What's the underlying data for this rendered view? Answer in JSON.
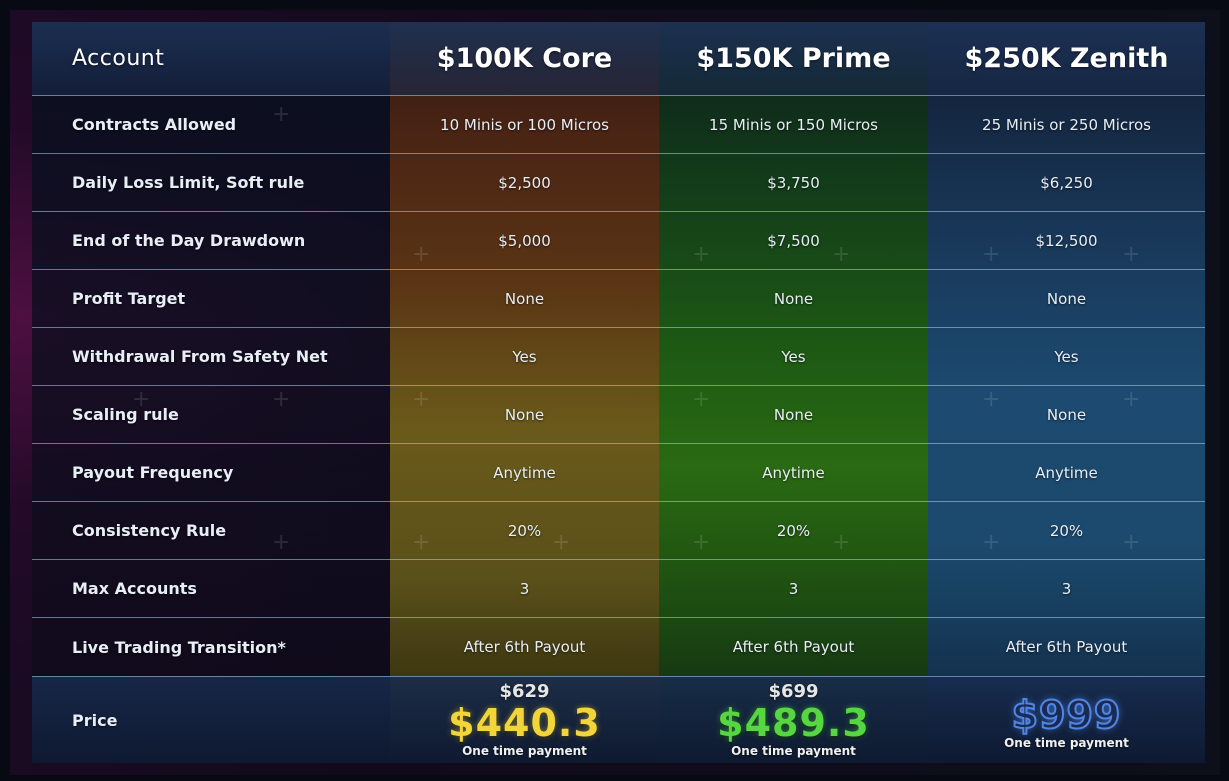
{
  "header": {
    "account_label": "Account",
    "plans": [
      "$100K Core",
      "$150K Prime",
      "$250K Zenith"
    ]
  },
  "rows": [
    {
      "label": "Contracts Allowed",
      "values": [
        "10 Minis or 100 Micros",
        "15 Minis or 150 Micros",
        "25 Minis or 250 Micros"
      ]
    },
    {
      "label": "Daily Loss Limit, Soft rule",
      "values": [
        "$2,500",
        "$3,750",
        "$6,250"
      ]
    },
    {
      "label": "End of the Day Drawdown",
      "values": [
        "$5,000",
        "$7,500",
        "$12,500"
      ]
    },
    {
      "label": "Profit Target",
      "values": [
        "None",
        "None",
        "None"
      ]
    },
    {
      "label": "Withdrawal From Safety Net",
      "values": [
        "Yes",
        "Yes",
        "Yes"
      ]
    },
    {
      "label": "Scaling rule",
      "values": [
        "None",
        "None",
        "None"
      ]
    },
    {
      "label": "Payout Frequency",
      "values": [
        "Anytime",
        "Anytime",
        "Anytime"
      ]
    },
    {
      "label": "Consistency Rule",
      "values": [
        "20%",
        "20%",
        "20%"
      ]
    },
    {
      "label": "Max Accounts",
      "values": [
        "3",
        "3",
        "3"
      ]
    },
    {
      "label": "Live Trading Transition*",
      "values": [
        "After 6th Payout",
        "After 6th Payout",
        "After 6th Payout"
      ]
    }
  ],
  "price": {
    "label": "Price",
    "plans": [
      {
        "old": "$629",
        "current": "$440.3",
        "note": "One time payment",
        "color": "#f2d53a"
      },
      {
        "old": "$699",
        "current": "$489.3",
        "note": "One time payment",
        "color": "#56d640"
      },
      {
        "old": "",
        "current": "$999",
        "note": "One time payment",
        "color": "#6aa6ff"
      }
    ]
  }
}
